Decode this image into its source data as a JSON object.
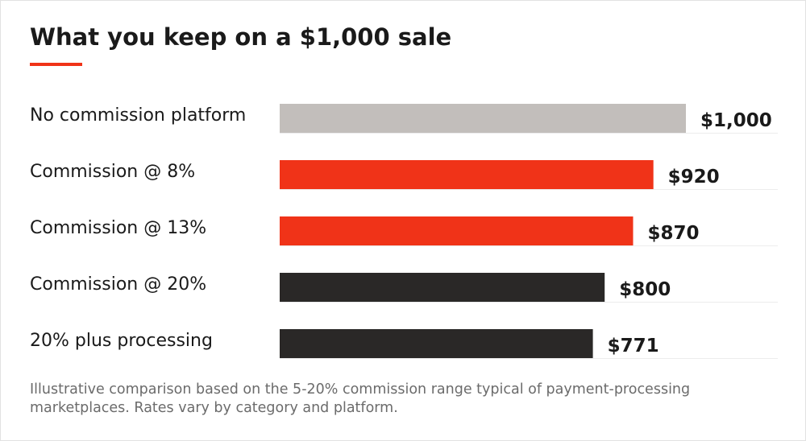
{
  "chart_data": {
    "type": "bar",
    "orientation": "horizontal",
    "title": "What you keep on a $1,000 sale",
    "categories": [
      "No commission platform",
      "Commission @ 8%",
      "Commission @ 13%",
      "Commission @ 20%",
      "20% plus processing"
    ],
    "values": [
      1000,
      920,
      870,
      800,
      771
    ],
    "value_labels": [
      "$1,000",
      "$920",
      "$870",
      "$800",
      "$771"
    ],
    "bar_colors": [
      "#c2bebb",
      "#f03318",
      "#f03318",
      "#2a2827",
      "#2a2827"
    ],
    "xlim": [
      0,
      1000
    ],
    "grid": false,
    "legend": "none"
  },
  "colors": {
    "accent": "#f03318",
    "neutral": "#c2bebb",
    "dark": "#2a2827"
  },
  "footnote": "Illustrative comparison based on the 5-20% commission range typical of payment-processing marketplaces. Rates vary by category and platform."
}
